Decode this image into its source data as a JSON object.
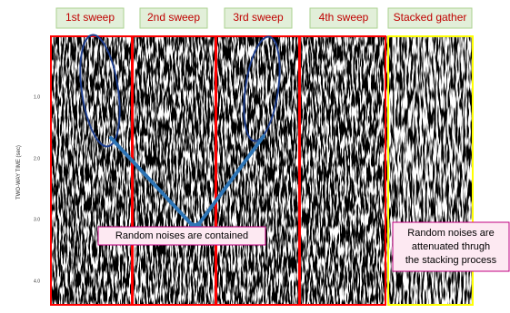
{
  "panels": [
    "1st sweep",
    "2nd sweep",
    "3rd sweep",
    "4th sweep",
    "Stacked gather"
  ],
  "axis": {
    "title": "TWO-WAY TIME (sec)",
    "ticks": [
      "1.0",
      "2.0",
      "3.0",
      "4.0"
    ]
  },
  "callouts": {
    "contained": "Random noises are contained",
    "attenuated": [
      "Random noises are",
      "attenuated thrugh",
      "the stacking process"
    ]
  }
}
